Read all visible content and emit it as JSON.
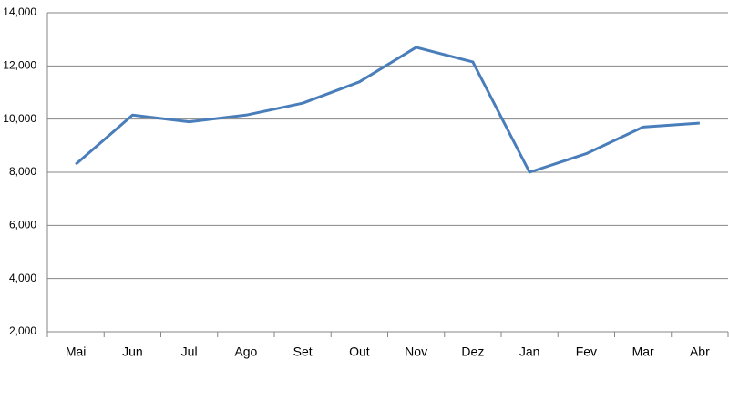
{
  "chart_data": {
    "type": "line",
    "categories": [
      "Mai",
      "Jun",
      "Jul",
      "Ago",
      "Set",
      "Out",
      "Nov",
      "Dez",
      "Jan",
      "Fev",
      "Mar",
      "Abr"
    ],
    "values": [
      8300,
      10150,
      9900,
      10150,
      10600,
      11400,
      12700,
      12150,
      8000,
      8700,
      9700,
      9850
    ],
    "color": "#4a7ebb",
    "ylim": [
      2000,
      14000
    ],
    "yticks": [
      {
        "value": 2000,
        "label": "2,000"
      },
      {
        "value": 4000,
        "label": "4,000"
      },
      {
        "value": 6000,
        "label": "6,000"
      },
      {
        "value": 8000,
        "label": "8,000"
      },
      {
        "value": 10000,
        "label": "10,000"
      },
      {
        "value": 12000,
        "label": "12,000"
      },
      {
        "value": 14000,
        "label": "14,000"
      }
    ],
    "grid": true
  }
}
